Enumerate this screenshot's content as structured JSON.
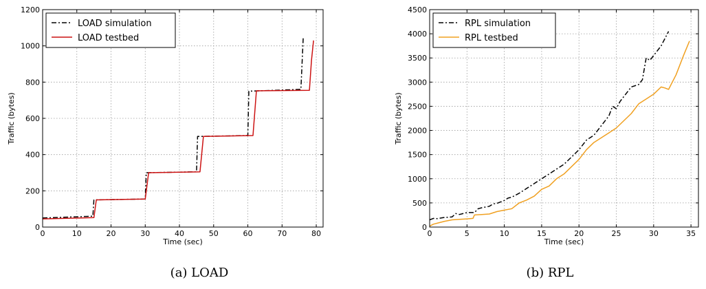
{
  "chart_data": [
    {
      "type": "line",
      "caption": "(a) LOAD",
      "xlabel": "Time (sec)",
      "ylabel": "Traffic (bytes)",
      "xlim": [
        0,
        82
      ],
      "ylim": [
        0,
        1200
      ],
      "xticks": [
        0,
        10,
        20,
        30,
        40,
        50,
        60,
        70,
        80
      ],
      "yticks": [
        0,
        200,
        400,
        600,
        800,
        1000,
        1200
      ],
      "grid": true,
      "legend_position": "top-left",
      "series": [
        {
          "name": "LOAD simulation",
          "color": "#000000",
          "style": "dashdot",
          "x": [
            0,
            14.7,
            15,
            30,
            30.3,
            45,
            45.3,
            60,
            60.3,
            75.5,
            76.2
          ],
          "y": [
            50,
            60,
            150,
            155,
            300,
            305,
            500,
            505,
            750,
            760,
            1045
          ]
        },
        {
          "name": "LOAD testbed",
          "color": "#cc1111",
          "style": "solid",
          "x": [
            0,
            15,
            15.7,
            30,
            31,
            46,
            47,
            61.5,
            62.5,
            78,
            78.6,
            79.2
          ],
          "y": [
            45,
            52,
            150,
            155,
            300,
            305,
            500,
            505,
            752,
            755,
            920,
            1030
          ]
        }
      ]
    },
    {
      "type": "line",
      "caption": "(b) RPL",
      "xlabel": "Time (sec)",
      "ylabel": "Traffic (bytes)",
      "xlim": [
        0,
        36
      ],
      "ylim": [
        0,
        4500
      ],
      "xticks": [
        0,
        5,
        10,
        15,
        20,
        25,
        30,
        35
      ],
      "yticks": [
        0,
        500,
        1000,
        1500,
        2000,
        2500,
        3000,
        3500,
        4000,
        4500
      ],
      "grid": true,
      "legend_position": "top-left",
      "series": [
        {
          "name": "RPL simulation",
          "color": "#000000",
          "style": "dashdot",
          "x": [
            0,
            0.5,
            1,
            2,
            3,
            3.5,
            4,
            5,
            6,
            6.5,
            7,
            8,
            8.5,
            9,
            10,
            10.5,
            11,
            12,
            13,
            14,
            15,
            16,
            17,
            18,
            19,
            20,
            21,
            22,
            23,
            24,
            24.5,
            25,
            25.5,
            26,
            27,
            28,
            28.5,
            29,
            29.5,
            30,
            31,
            32
          ],
          "y": [
            150,
            180,
            175,
            200,
            210,
            280,
            260,
            300,
            300,
            380,
            400,
            430,
            480,
            490,
            550,
            600,
            620,
            700,
            800,
            900,
            1000,
            1100,
            1200,
            1300,
            1450,
            1600,
            1800,
            1900,
            2100,
            2300,
            2500,
            2450,
            2600,
            2700,
            2900,
            2950,
            3050,
            3500,
            3450,
            3550,
            3750,
            4050
          ]
        },
        {
          "name": "RPL testbed",
          "color": "#f0a020",
          "style": "solid",
          "x": [
            0,
            0.5,
            1,
            2,
            3,
            4,
            5,
            5.8,
            6,
            7,
            8,
            9,
            10,
            11,
            12,
            13,
            14,
            15,
            16,
            17,
            18,
            19,
            20,
            21,
            22,
            23,
            24,
            25,
            26,
            27,
            28,
            29,
            30,
            31,
            31.5,
            32,
            33,
            34,
            34.8
          ],
          "y": [
            20,
            60,
            80,
            120,
            150,
            160,
            170,
            180,
            250,
            260,
            270,
            320,
            350,
            380,
            500,
            560,
            640,
            780,
            850,
            1000,
            1100,
            1250,
            1400,
            1600,
            1750,
            1850,
            1950,
            2050,
            2200,
            2350,
            2550,
            2650,
            2750,
            2900,
            2880,
            2850,
            3150,
            3550,
            3850
          ]
        }
      ]
    }
  ]
}
